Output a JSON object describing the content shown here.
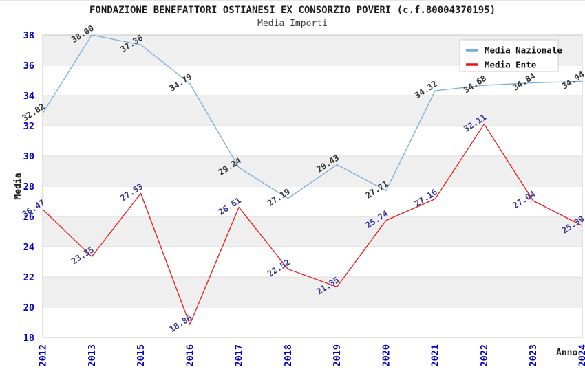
{
  "chart": {
    "title": "FONDAZIONE BENEFATTORI OSTIANESI EX CONSORZIO POVERI (c.f.80004370195)",
    "subtitle": "Media Importi"
  },
  "chart_data": {
    "type": "line",
    "title": "FONDAZIONE BENEFATTORI OSTIANESI EX CONSORZIO POVERI (c.f.80004370195)",
    "subtitle": "Media Importi",
    "xlabel": "Anno",
    "ylabel": "Media",
    "ylim": [
      18,
      38
    ],
    "ytick_step": 2,
    "yticks": [
      18,
      20,
      22,
      24,
      26,
      28,
      30,
      32,
      34,
      36,
      38
    ],
    "grid": true,
    "band_fill": true,
    "legend_position": "top-right",
    "categories": [
      "2012",
      "2013",
      "2015",
      "2016",
      "2017",
      "2018",
      "2019",
      "2020",
      "2021",
      "2022",
      "2023",
      "2024"
    ],
    "series": [
      {
        "name": "Media Nazionale",
        "color": "#74aede",
        "label_color": "#333333",
        "values": [
          32.82,
          38.0,
          37.36,
          34.79,
          29.24,
          27.19,
          29.43,
          27.71,
          34.32,
          34.68,
          34.84,
          34.94
        ]
      },
      {
        "name": "Media Ente",
        "color": "#ee1515",
        "label_color": "#333399",
        "values": [
          26.47,
          23.35,
          27.53,
          18.86,
          26.61,
          22.52,
          21.35,
          25.74,
          27.16,
          32.11,
          27.04,
          25.39
        ]
      }
    ]
  },
  "colors": {
    "axis_tick_text": "#0000cc",
    "axis_title_text": "#222222",
    "plot_band": "#efefef",
    "gridline": "#dcdcdc",
    "plot_border": "#c4c4c4",
    "legend_border": "#cccccc",
    "legend_bg": "#ffffff",
    "legend_text": "#111111"
  }
}
